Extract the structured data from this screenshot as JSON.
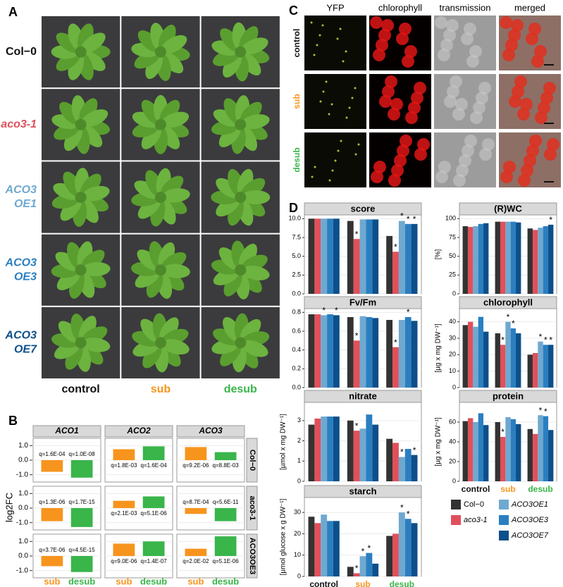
{
  "panel_labels": [
    "A",
    "B",
    "C",
    "D"
  ],
  "panel_a": {
    "rows": [
      {
        "lines": [
          "Col−0"
        ],
        "color": "#111111",
        "italic": false
      },
      {
        "lines": [
          "aco3-1"
        ],
        "color": "#e0505a",
        "italic": true
      },
      {
        "lines": [
          "ACO3",
          "OE1"
        ],
        "color": "#6fa8d0",
        "italic": true
      },
      {
        "lines": [
          "ACO3",
          "OE3"
        ],
        "color": "#2a7fc0",
        "italic": true
      },
      {
        "lines": [
          "ACO3",
          "OE7"
        ],
        "color": "#0d4f8a",
        "italic": true
      }
    ],
    "columns": [
      {
        "text": "control",
        "color": "#111111"
      },
      {
        "text": "sub",
        "color": "#f7941d"
      },
      {
        "text": "desub",
        "color": "#39b54a"
      }
    ]
  },
  "panel_c": {
    "columns": [
      "YFP",
      "chlorophyll",
      "transmission",
      "merged"
    ],
    "rows": [
      {
        "text": "control",
        "color": "#111111"
      },
      {
        "text": "sub",
        "color": "#f7941d"
      },
      {
        "text": "desub",
        "color": "#39b54a"
      }
    ]
  },
  "chart_data": [
    {
      "type": "facet-bar",
      "ylabel": "log2FC",
      "facet_columns": [
        "ACO1",
        "ACO2",
        "ACO3"
      ],
      "facet_rows": [
        "Col−0",
        "aco3-1",
        "ACO3OE3"
      ],
      "categories": [
        "sub",
        "desub"
      ],
      "colors": [
        "#f7941d",
        "#39b54a"
      ],
      "ylim": [
        -1.5,
        1.5
      ],
      "yticks": [
        {
          "value": 1,
          "label": "1.0"
        },
        {
          "value": 0,
          "label": "0.0"
        },
        {
          "value": -1,
          "label": "-1.0"
        }
      ],
      "cells": [
        [
          {
            "values": [
              -0.8,
              -1.2
            ],
            "annotations": [
              "q=1.6E-04",
              "q=1.0E-08"
            ]
          },
          {
            "values": [
              0.75,
              0.95
            ],
            "annotations": [
              "q=1.8E-03",
              "q=1.6E-04"
            ]
          },
          {
            "values": [
              0.9,
              0.55
            ],
            "annotations": [
              "q=9.2E-06",
              "q=8.8E-03"
            ]
          }
        ],
        [
          {
            "values": [
              -0.9,
              -1.3
            ],
            "annotations": [
              "q=1.3E-06",
              "q=1.7E-15"
            ]
          },
          {
            "values": [
              0.5,
              0.8
            ],
            "annotations": [
              "q=2.1E-03",
              "q=5.1E-06"
            ]
          },
          {
            "values": [
              -0.4,
              -0.9
            ],
            "annotations": [
              "q=8.7E-04",
              "q=5.6E-11"
            ]
          }
        ],
        [
          {
            "values": [
              -0.7,
              -1.1
            ],
            "annotations": [
              "q=3.7E-06",
              "q=4.5E-15"
            ]
          },
          {
            "values": [
              0.85,
              1.0
            ],
            "annotations": [
              "q=9.0E-06",
              "q=1.4E-07"
            ]
          },
          {
            "values": [
              0.5,
              1.35
            ],
            "annotations": [
              "q=2.0E-02",
              "q=5.1E-06"
            ]
          }
        ]
      ]
    },
    {
      "type": "facet-grouped-bar",
      "categories": [
        "control",
        "sub",
        "desub"
      ],
      "category_colors": [
        "#111111",
        "#f7941d",
        "#39b54a"
      ],
      "series": [
        {
          "name": "Col−0",
          "color": "#333333"
        },
        {
          "name": "aco3-1",
          "color": "#e0505a"
        },
        {
          "name": "ACO3OE1",
          "color": "#6fa8d0"
        },
        {
          "name": "ACO3OE3",
          "color": "#2a7fc0"
        },
        {
          "name": "ACO3OE7",
          "color": "#0d4f8a"
        }
      ],
      "grid": true,
      "facets": [
        {
          "title": "score",
          "ylim": [
            0,
            10.5
          ],
          "yticks": [
            {
              "value": 0,
              "label": "0.0"
            },
            2.5,
            {
              "value": 5,
              "label": "5.0"
            },
            7.5,
            {
              "value": 10,
              "label": "10.0"
            }
          ],
          "values": [
            [
              10,
              9.7,
              7.7
            ],
            [
              10,
              7.3,
              5.6
            ],
            [
              10,
              9.9,
              9.7
            ],
            [
              10,
              9.9,
              9.3
            ],
            [
              10,
              9.9,
              9.3
            ]
          ],
          "annotations": [
            {
              "text": "*",
              "series": "aco3-1",
              "category": "sub"
            },
            {
              "text": "*",
              "series": "aco3-1",
              "category": "desub"
            },
            {
              "text": "*",
              "series": "ACO3OE1",
              "category": "desub"
            },
            {
              "text": "*",
              "series": "ACO3OE3",
              "category": "desub"
            },
            {
              "text": "*",
              "series": "ACO3OE7",
              "category": "desub"
            }
          ]
        },
        {
          "title": "(R)WC",
          "ylabel": "[%]",
          "ylim": [
            0,
            105
          ],
          "yticks": [
            0,
            25,
            50,
            75,
            100
          ],
          "values": [
            [
              90,
              96,
              87
            ],
            [
              89,
              96,
              85
            ],
            [
              90,
              96,
              88
            ],
            [
              93,
              96,
              90
            ],
            [
              94,
              95,
              92
            ]
          ],
          "annotations": [
            {
              "text": "*",
              "series": "ACO3OE7",
              "category": "desub"
            }
          ]
        },
        {
          "title": "Fv/Fm",
          "ylim": [
            0,
            0.84
          ],
          "yticks": [
            {
              "value": 0,
              "label": "0.0"
            },
            0.2,
            0.4,
            0.6,
            0.8
          ],
          "values": [
            [
              0.78,
              0.75,
              0.72
            ],
            [
              0.78,
              0.5,
              0.43
            ],
            [
              0.77,
              0.76,
              0.72
            ],
            [
              0.78,
              0.75,
              0.75
            ],
            [
              0.77,
              0.74,
              0.71
            ]
          ],
          "annotations": [
            {
              "text": "*",
              "series": "ACO3OE1",
              "category": "control"
            },
            {
              "text": "*",
              "series": "ACO3OE7",
              "category": "control"
            },
            {
              "text": "*",
              "series": "aco3-1",
              "category": "sub"
            },
            {
              "text": "*",
              "series": "aco3-1",
              "category": "desub"
            },
            {
              "text": "*",
              "series": "ACO3OE3",
              "category": "desub"
            }
          ]
        },
        {
          "title": "chlorophyll",
          "ylabel": "[µg x mg DW⁻¹]",
          "ylim": [
            0,
            48
          ],
          "yticks": [
            0,
            10,
            20,
            30,
            40
          ],
          "values": [
            [
              38,
              33,
              20
            ],
            [
              40,
              26,
              21
            ],
            [
              37,
              40,
              28
            ],
            [
              43,
              36,
              26
            ],
            [
              34,
              33,
              26
            ]
          ],
          "annotations": [
            {
              "text": "*",
              "series": "aco3-1",
              "category": "sub"
            },
            {
              "text": "*",
              "series": "ACO3OE1",
              "category": "sub"
            },
            {
              "text": "*",
              "series": "ACO3OE3",
              "category": "sub"
            },
            {
              "text": "*",
              "series": "ACO3OE1",
              "category": "desub"
            },
            {
              "text": "*",
              "series": "ACO3OE3",
              "category": "desub"
            },
            {
              "text": "*",
              "series": "ACO3OE7",
              "category": "desub"
            }
          ]
        },
        {
          "title": "nitrate",
          "ylabel": "[µmol x mg DW⁻¹]",
          "ylim": [
            0,
            3.9
          ],
          "yticks": [
            0,
            1,
            2,
            3
          ],
          "values": [
            [
              2.8,
              3.0,
              2.1
            ],
            [
              3.1,
              2.5,
              1.9
            ],
            [
              3.2,
              2.6,
              1.2
            ],
            [
              3.2,
              3.3,
              1.6
            ],
            [
              3.2,
              2.8,
              1.3
            ]
          ],
          "annotations": [
            {
              "text": "*",
              "series": "aco3-1",
              "category": "sub"
            },
            {
              "text": "*",
              "series": "ACO3OE1",
              "category": "desub"
            },
            {
              "text": "*",
              "series": "ACO3OE7",
              "category": "desub"
            }
          ]
        },
        {
          "title": "protein",
          "ylabel": "[µg x mg DW⁻¹]",
          "ylim": [
            0,
            80
          ],
          "yticks": [
            0,
            20,
            40,
            60
          ],
          "values": [
            [
              61,
              60,
              53
            ],
            [
              64,
              45,
              48
            ],
            [
              60,
              65,
              67
            ],
            [
              69,
              63,
              66
            ],
            [
              57,
              58,
              52
            ]
          ],
          "annotations": [
            {
              "text": "*",
              "series": "aco3-1",
              "category": "sub"
            },
            {
              "text": "*",
              "series": "ACO3OE1",
              "category": "desub"
            },
            {
              "text": "*",
              "series": "ACO3OE3",
              "category": "desub"
            }
          ]
        },
        {
          "title": "starch",
          "ylabel": "[µmol glucose x g DW⁻¹]",
          "ylim": [
            0,
            37
          ],
          "yticks": [
            0,
            10,
            20,
            30
          ],
          "values": [
            [
              28,
              4.5,
              19
            ],
            [
              25,
              1.5,
              20
            ],
            [
              29,
              9.5,
              30
            ],
            [
              26,
              11,
              27
            ],
            [
              26,
              6,
              25
            ]
          ],
          "annotations": [
            {
              "text": "*",
              "series": "aco3-1",
              "category": "sub"
            },
            {
              "text": "*",
              "series": "ACO3OE1",
              "category": "sub"
            },
            {
              "text": "*",
              "series": "ACO3OE3",
              "category": "sub"
            },
            {
              "text": "*",
              "series": "ACO3OE1",
              "category": "desub"
            },
            {
              "text": "*",
              "series": "ACO3OE3",
              "category": "desub"
            }
          ]
        }
      ]
    }
  ]
}
